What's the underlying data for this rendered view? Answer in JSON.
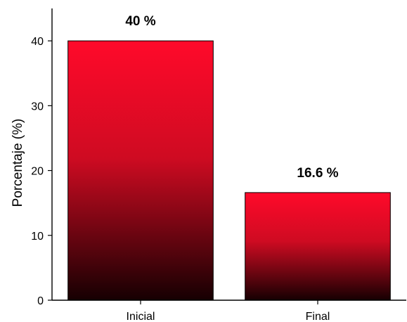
{
  "chart_data": {
    "type": "bar",
    "categories": [
      "Inicial",
      "Final"
    ],
    "values": [
      40,
      16.6
    ],
    "data_labels": [
      "40 %",
      "16.6 %"
    ],
    "title": "",
    "xlabel": "",
    "ylabel": "Porcentaje (%)",
    "ylim": [
      0,
      45
    ],
    "yticks": [
      "0",
      "10",
      "20",
      "30",
      "40"
    ],
    "grid": false,
    "legend": "none",
    "colors": {
      "bar_top": "#ff0a2a",
      "bar_bottom": "#160002",
      "axis": "#000000"
    }
  }
}
